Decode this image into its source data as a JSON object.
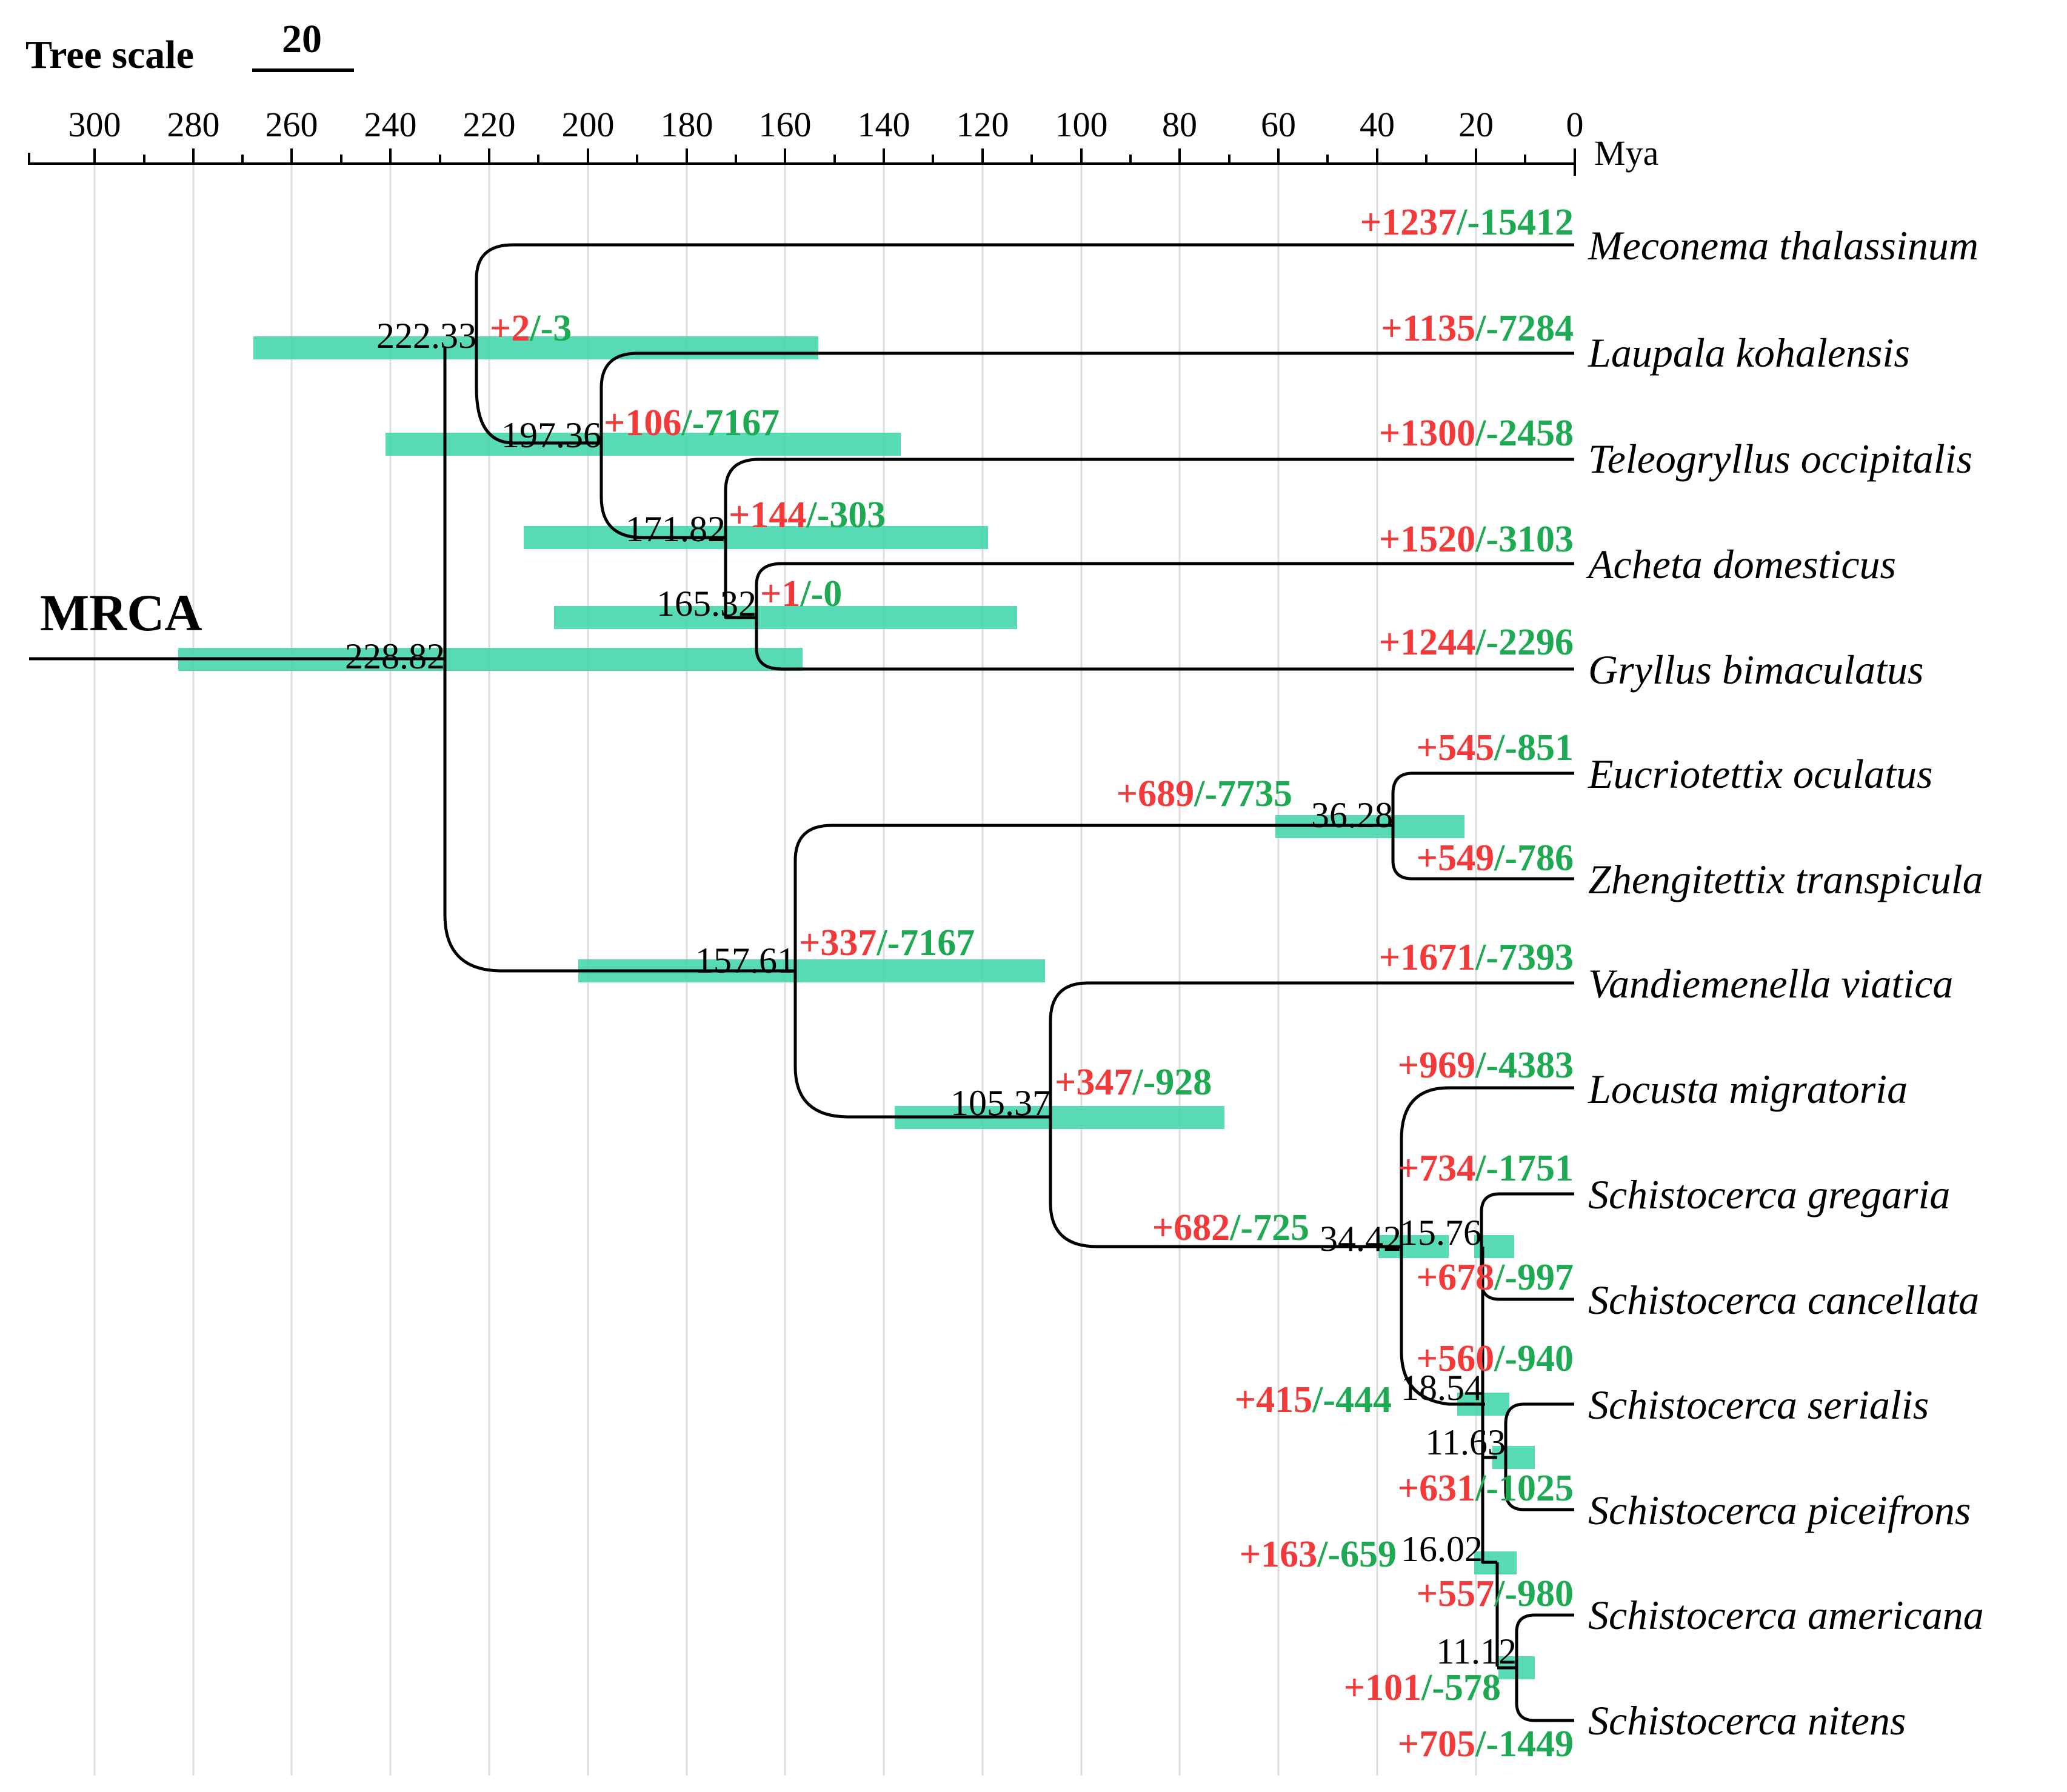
{
  "scale_bar": {
    "label": "Tree scale",
    "value": "20"
  },
  "axis": {
    "ticks": [
      "300",
      "280",
      "260",
      "240",
      "220",
      "200",
      "180",
      "160",
      "140",
      "120",
      "100",
      "80",
      "60",
      "40",
      "20",
      "0"
    ],
    "unit": "Mya"
  },
  "root_label": "MRCA",
  "colors": {
    "gain": "#f33a3a",
    "loss": "#1daa52",
    "bar": "#46d6ac",
    "line": "#000000",
    "grid": "#dddddd"
  },
  "taxa": [
    {
      "name": "Meconema thalassinum",
      "gain": "+1237",
      "loss": "/-15412"
    },
    {
      "name": "Laupala kohalensis",
      "gain": "+1135",
      "loss": "/-7284"
    },
    {
      "name": "Teleogryllus occipitalis",
      "gain": "+1300",
      "loss": "/-2458"
    },
    {
      "name": "Acheta domesticus",
      "gain": "+1520",
      "loss": "/-3103"
    },
    {
      "name": "Gryllus bimaculatus",
      "gain": "+1244",
      "loss": "/-2296"
    },
    {
      "name": "Eucriotettix oculatus",
      "gain": "+545",
      "loss": "/-851"
    },
    {
      "name": "Zhengitettix transpicula",
      "gain": "+549",
      "loss": "/-786"
    },
    {
      "name": "Vandiemenella viatica",
      "gain": "+1671",
      "loss": "/-7393"
    },
    {
      "name": "Locusta migratoria",
      "gain": "+969",
      "loss": "/-4383"
    },
    {
      "name": "Schistocerca gregaria",
      "gain": "+734",
      "loss": "/-1751"
    },
    {
      "name": "Schistocerca cancellata",
      "gain": "+678",
      "loss": "/-997"
    },
    {
      "name": "Schistocerca serialis",
      "gain": "+560",
      "loss": "/-940"
    },
    {
      "name": "Schistocerca piceifrons",
      "gain": "+631",
      "loss": "/-1025"
    },
    {
      "name": "Schistocerca americana",
      "gain": "+557",
      "loss": "/-980"
    },
    {
      "name": "Schistocerca nitens",
      "gain": "+705",
      "loss": "/-1449"
    }
  ],
  "nodes": [
    {
      "age": "228.82",
      "gain": "",
      "loss": ""
    },
    {
      "age": "222.33",
      "gain": "+2",
      "loss": "/-3"
    },
    {
      "age": "197.36",
      "gain": "+106",
      "loss": "/-7167"
    },
    {
      "age": "171.82",
      "gain": "+144",
      "loss": "/-303"
    },
    {
      "age": "165.32",
      "gain": "+1",
      "loss": "/-0"
    },
    {
      "age": "157.61",
      "gain": "+337",
      "loss": "/-7167"
    },
    {
      "age": "36.28",
      "gain": "+689",
      "loss": "/-7735"
    },
    {
      "age": "105.37",
      "gain": "+347",
      "loss": "/-928"
    },
    {
      "age": "34.42",
      "gain": "+682",
      "loss": "/-725"
    },
    {
      "age": "15.76",
      "gain": "",
      "loss": ""
    },
    {
      "age": "18.54",
      "gain": "+415",
      "loss": "/-444"
    },
    {
      "age": "11.63",
      "gain": "",
      "loss": ""
    },
    {
      "age": "16.02",
      "gain": "+163",
      "loss": "/-659"
    },
    {
      "age": "11.12",
      "gain": "+101",
      "loss": "/-578"
    }
  ]
}
